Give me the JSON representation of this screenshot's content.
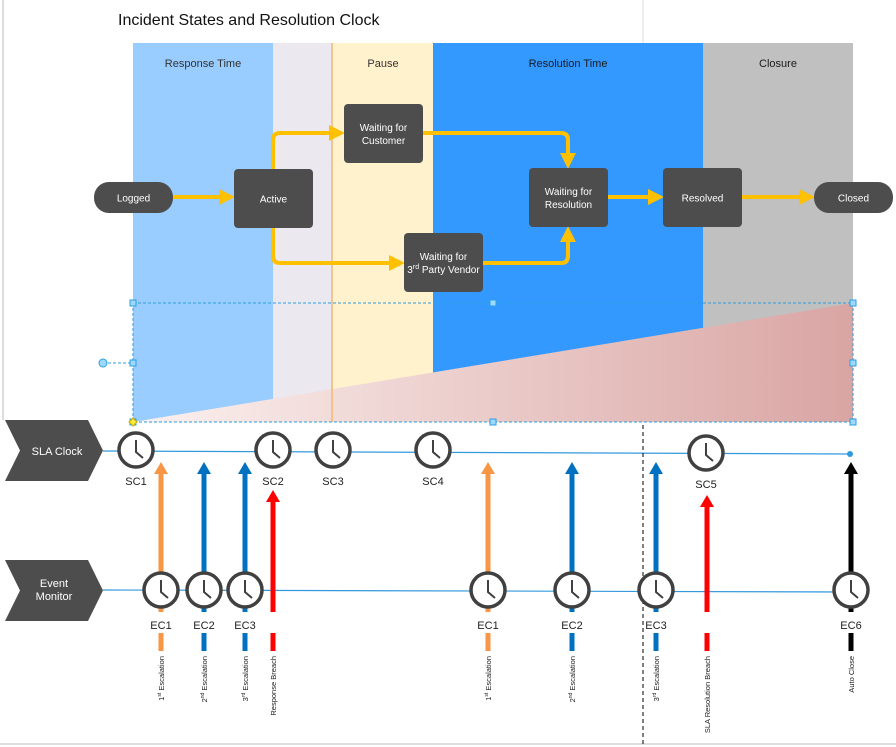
{
  "title": "Incident States and Resolution Clock",
  "phases": [
    {
      "label": "Response Time",
      "color": "#99ccff"
    },
    {
      "label": "",
      "color": "#ebe8f0"
    },
    {
      "label": "Pause",
      "color": "#fff2cc"
    },
    {
      "label": "Resolution Time",
      "color": "#3399ff"
    },
    {
      "label": "Closure",
      "color": "#c0c0c0"
    }
  ],
  "states": [
    {
      "id": "logged",
      "lines": [
        "Logged"
      ]
    },
    {
      "id": "active",
      "lines": [
        "Active"
      ]
    },
    {
      "id": "waiting-customer",
      "lines": [
        "Waiting for",
        "Customer"
      ]
    },
    {
      "id": "waiting-resolution",
      "lines": [
        "Waiting for",
        "Resolution"
      ]
    },
    {
      "id": "waiting-vendor",
      "lines": [
        "Waiting for",
        "3rd Party Vendor"
      ]
    },
    {
      "id": "resolved",
      "lines": [
        "Resolved"
      ]
    },
    {
      "id": "closed",
      "lines": [
        "Closed"
      ]
    }
  ],
  "lanes": {
    "sla_clock": "SLA Clock",
    "event_monitor": [
      "Event",
      "Monitor"
    ]
  },
  "sla_clocks": [
    "SC1",
    "SC2",
    "SC3",
    "SC4",
    "SC5"
  ],
  "event_clocks": [
    {
      "label": "EC1",
      "event": "1st Escalation",
      "color": "#f79646"
    },
    {
      "label": "EC2",
      "event": "2nd Escalation",
      "color": "#0070c0"
    },
    {
      "label": "EC3",
      "event": "3rd Escalation",
      "color": "#0070c0"
    },
    {
      "label": "",
      "event": "Response Breach",
      "color": "#ff0000"
    },
    {
      "label": "EC1",
      "event": "1st Escalation",
      "color": "#f79646"
    },
    {
      "label": "EC2",
      "event": "2nd Escalation",
      "color": "#0070c0"
    },
    {
      "label": "EC3",
      "event": "3rd Escalation",
      "color": "#0070c0"
    },
    {
      "label": "",
      "event": "SLA Resolution Breach",
      "color": "#ff0000"
    },
    {
      "label": "EC6",
      "event": "Auto Close",
      "color": "#000000"
    }
  ],
  "colors": {
    "state_box": "#4d4d4d",
    "flow_arrow": "#ffc000",
    "timeline": "#3399dd",
    "clock": "#404040",
    "selection": "#2a9fe0"
  }
}
